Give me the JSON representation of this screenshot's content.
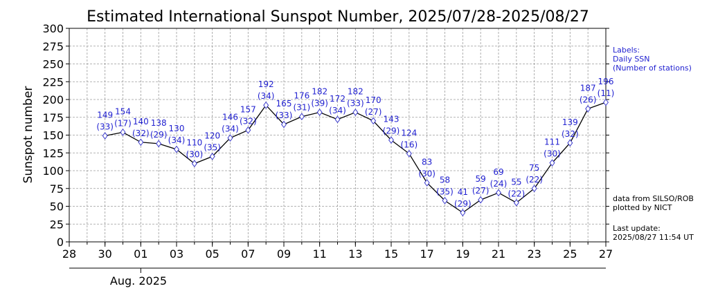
{
  "chart_data": {
    "type": "line",
    "title": "Estimated International Sunspot Number, 2025/07/28-2025/08/27",
    "ylabel": "Sunspot number",
    "xlabel": "",
    "ylim": [
      0,
      300
    ],
    "yticks": [
      0,
      25,
      50,
      75,
      100,
      125,
      150,
      175,
      200,
      225,
      250,
      275,
      300
    ],
    "xlim": [
      28,
      58
    ],
    "x_tick_labels": [
      "28",
      "30",
      "01",
      "03",
      "05",
      "07",
      "09",
      "11",
      "13",
      "15",
      "17",
      "19",
      "21",
      "23",
      "25",
      "27"
    ],
    "x_tick_values": [
      28,
      30,
      32,
      34,
      36,
      38,
      40,
      42,
      44,
      46,
      48,
      50,
      52,
      54,
      56,
      58
    ],
    "month_label": "Aug. 2025",
    "grid": true,
    "series": [
      {
        "name": "Daily SSN",
        "x": [
          30,
          31,
          32,
          33,
          34,
          35,
          36,
          37,
          38,
          39,
          40,
          41,
          42,
          43,
          44,
          45,
          46,
          47,
          48,
          49,
          50,
          51,
          52,
          53,
          54,
          55,
          56,
          57,
          58
        ],
        "values": [
          149,
          154,
          140,
          138,
          130,
          110,
          120,
          146,
          157,
          192,
          165,
          176,
          182,
          172,
          182,
          170,
          143,
          124,
          83,
          58,
          41,
          59,
          69,
          55,
          75,
          111,
          139,
          187,
          196
        ],
        "stations": [
          33,
          17,
          32,
          29,
          34,
          30,
          35,
          34,
          32,
          34,
          33,
          31,
          39,
          34,
          33,
          27,
          29,
          16,
          30,
          35,
          29,
          27,
          24,
          22,
          22,
          30,
          32,
          26,
          11
        ]
      }
    ]
  },
  "legend": {
    "line1": "Labels:",
    "line2": "Daily SSN",
    "line3": "(Number of stations)"
  },
  "credits": {
    "source": "data from SILSO/ROB",
    "plotted": "plotted by NICT",
    "update_label": "Last update:",
    "update_time": "2025/08/27 11:54 UT"
  },
  "colors": {
    "marker": "#3a3acc",
    "label": "#1f1fd0",
    "line": "#000000",
    "grid": "#9a9a9a"
  }
}
